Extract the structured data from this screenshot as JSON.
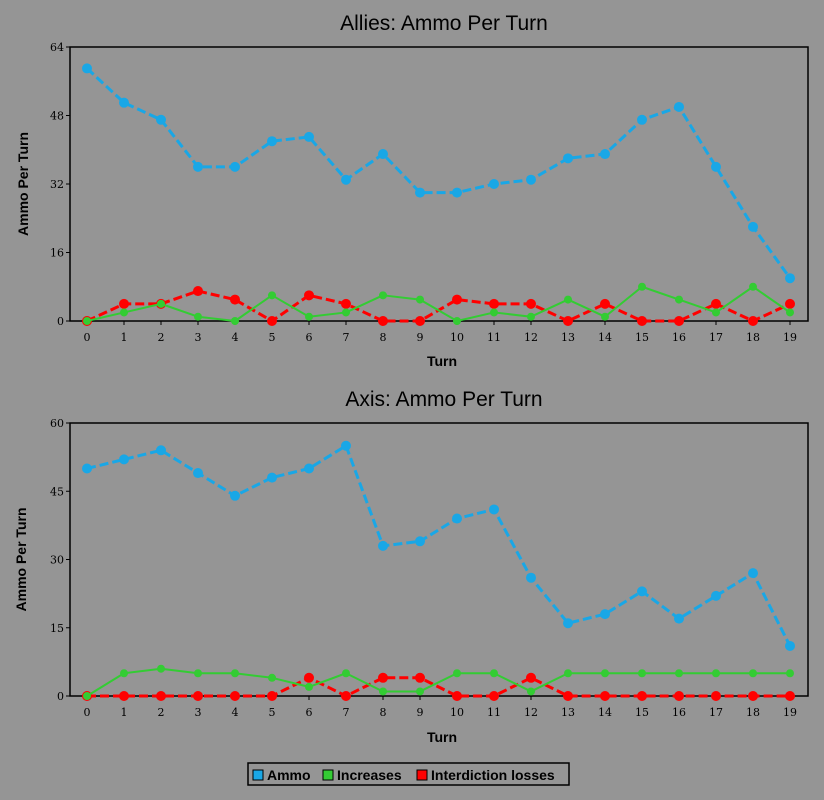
{
  "chart_data": [
    {
      "type": "line",
      "title": "Allies: Ammo Per Turn",
      "xlabel": "Turn",
      "ylabel": "Ammo Per Turn",
      "x": [
        0,
        1,
        2,
        3,
        4,
        5,
        6,
        7,
        8,
        9,
        10,
        11,
        12,
        13,
        14,
        15,
        16,
        17,
        18,
        19
      ],
      "xlim": [
        0,
        19
      ],
      "ylim": [
        0,
        64
      ],
      "yticks": [
        0,
        16,
        32,
        48,
        64
      ],
      "series": [
        {
          "name": "Ammo",
          "color": "#19a7e6",
          "values": [
            59,
            51,
            47,
            36,
            36,
            42,
            43,
            33,
            39,
            30,
            30,
            32,
            33,
            38,
            39,
            47,
            50,
            36,
            22,
            10
          ]
        },
        {
          "name": "Increases",
          "color": "#33cc33",
          "values": [
            0,
            2,
            4,
            1,
            0,
            6,
            1,
            2,
            6,
            5,
            0,
            2,
            1,
            5,
            1,
            8,
            5,
            2,
            8,
            2
          ]
        },
        {
          "name": "Interdiction losses",
          "color": "#ff0000",
          "values": [
            0,
            4,
            4,
            7,
            5,
            0,
            6,
            4,
            0,
            0,
            5,
            4,
            4,
            0,
            4,
            0,
            0,
            4,
            0,
            4
          ]
        }
      ]
    },
    {
      "type": "line",
      "title": "Axis: Ammo Per Turn",
      "xlabel": "Turn",
      "ylabel": "Ammo Per Turn",
      "x": [
        0,
        1,
        2,
        3,
        4,
        5,
        6,
        7,
        8,
        9,
        10,
        11,
        12,
        13,
        14,
        15,
        16,
        17,
        18,
        19
      ],
      "xlim": [
        0,
        19
      ],
      "ylim": [
        0,
        60
      ],
      "yticks": [
        0,
        15,
        30,
        45,
        60
      ],
      "series": [
        {
          "name": "Ammo",
          "color": "#19a7e6",
          "values": [
            50,
            52,
            54,
            49,
            44,
            48,
            50,
            55,
            33,
            34,
            39,
            41,
            26,
            16,
            18,
            23,
            17,
            22,
            27,
            11
          ]
        },
        {
          "name": "Increases",
          "color": "#33cc33",
          "values": [
            0,
            5,
            6,
            5,
            5,
            4,
            2,
            5,
            1,
            1,
            5,
            5,
            1,
            5,
            5,
            5,
            5,
            5,
            5,
            5
          ]
        },
        {
          "name": "Interdiction losses",
          "color": "#ff0000",
          "values": [
            0,
            0,
            0,
            0,
            0,
            0,
            4,
            0,
            4,
            4,
            0,
            0,
            4,
            0,
            0,
            0,
            0,
            0,
            0,
            0
          ]
        }
      ]
    }
  ],
  "legend": {
    "placement": "bottom-center",
    "items": [
      {
        "label": "Ammo",
        "color": "#19a7e6"
      },
      {
        "label": "Increases",
        "color": "#33cc33"
      },
      {
        "label": "Interdiction losses",
        "color": "#ff0000"
      }
    ]
  }
}
